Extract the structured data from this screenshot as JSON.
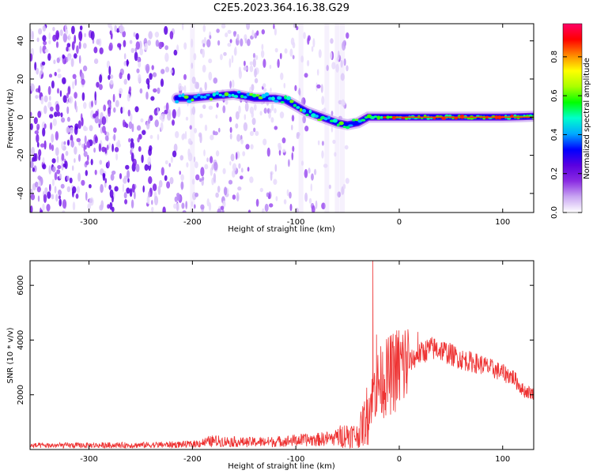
{
  "title": "C2E5.2023.364.16.38.G29",
  "chart_data": [
    {
      "type": "heatmap",
      "xlabel": "Height of straight line (km)",
      "ylabel": "Frequency (Hz)",
      "xlim": [
        -357,
        130
      ],
      "ylim": [
        -50,
        49
      ],
      "x_ticks": [
        -300,
        -200,
        -100,
        0,
        100
      ],
      "y_ticks": [
        -40,
        -20,
        0,
        20,
        40
      ],
      "grid": false,
      "colorbar": {
        "label": "Normalized spectral amplitude",
        "range": [
          0,
          0.97
        ],
        "ticks": [
          0.0,
          0.2,
          0.4,
          0.6,
          0.8
        ],
        "colors": [
          "#ffffff",
          "#c9a6f2",
          "#8a2be2",
          "#5a00e0",
          "#0000ff",
          "#00aaff",
          "#00ffcc",
          "#00ff00",
          "#aaff00",
          "#ffff00",
          "#ff8800",
          "#ff0000",
          "#ff0066"
        ]
      },
      "ridge": {
        "name": "spectral ridge",
        "x": [
          -215,
          -200,
          -180,
          -160,
          -140,
          -120,
          -110,
          -100,
          -90,
          -80,
          -70,
          -60,
          -50,
          -40,
          -30,
          -20,
          -10,
          0,
          20,
          40,
          60,
          80,
          100,
          120,
          130
        ],
        "y": [
          10,
          10,
          11,
          12,
          10,
          10,
          9,
          6,
          3,
          1,
          -1,
          -3,
          -4,
          -3,
          0,
          0,
          0,
          0,
          0,
          0,
          0,
          0,
          0,
          0.3,
          0.5
        ]
      }
    },
    {
      "type": "line",
      "xlabel": "Height of straight line (km)",
      "ylabel": "SNR (10 * v/v)",
      "xlim": [
        -357,
        130
      ],
      "ylim": [
        0,
        6900
      ],
      "x_ticks": [
        -300,
        -200,
        -100,
        0,
        100
      ],
      "y_ticks": [
        2000,
        4000,
        6000
      ],
      "grid": false,
      "color": "#ee3333",
      "x": [
        -357,
        -300,
        -250,
        -200,
        -180,
        -150,
        -120,
        -100,
        -80,
        -60,
        -50,
        -40,
        -35,
        -30,
        -25,
        -20,
        -10,
        0,
        10,
        20,
        30,
        40,
        60,
        80,
        100,
        110,
        120,
        130
      ],
      "y": [
        150,
        160,
        170,
        200,
        330,
        280,
        300,
        350,
        380,
        450,
        550,
        500,
        900,
        1400,
        2200,
        2400,
        2700,
        3000,
        3200,
        3500,
        3700,
        3650,
        3300,
        3100,
        2800,
        2650,
        2150,
        2050
      ],
      "peaks": [
        {
          "x": -25.5,
          "y": 6900
        },
        {
          "x": -22,
          "y": 4200
        },
        {
          "x": 18,
          "y": 4300
        }
      ]
    }
  ]
}
